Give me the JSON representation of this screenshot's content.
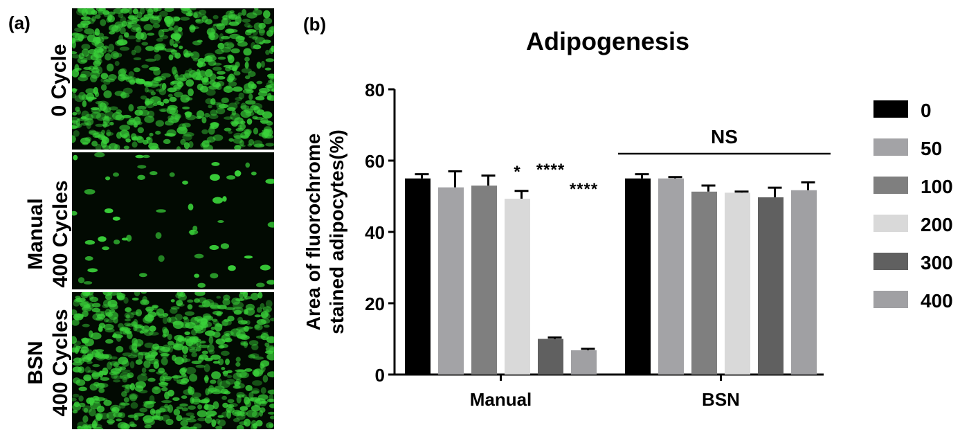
{
  "panel_a_label": "(a)",
  "panel_b_label": "(b)",
  "micrograph_rows": [
    {
      "line1": "0 Cycle",
      "line2": "",
      "density": "high"
    },
    {
      "line1": "Manual",
      "line2": "400 Cycles",
      "density": "sparse"
    },
    {
      "line1": "BSN",
      "line2": "400 Cycles",
      "density": "high"
    }
  ],
  "colors": {
    "fluorescence": "#3ad23a",
    "series": [
      "#000000",
      "#a3a3a6",
      "#7f7f7f",
      "#d9d9d9",
      "#606060",
      "#a0a0a3"
    ]
  },
  "chart_data": {
    "type": "bar",
    "title": "Adipogenesis",
    "ylabel_lines": [
      "Area of fluorochrome",
      "stained adipocytes(%)"
    ],
    "xlabel": "",
    "categories": [
      "Manual",
      "BSN"
    ],
    "ylim": [
      0,
      80
    ],
    "yticks": [
      0,
      20,
      40,
      60,
      80
    ],
    "grid": false,
    "legend_position": "right",
    "series": [
      {
        "name": "0",
        "values": [
          55.0,
          55.0
        ],
        "errors": [
          1.2,
          1.2
        ]
      },
      {
        "name": "50",
        "values": [
          52.5,
          55.0
        ],
        "errors": [
          4.5,
          0.4
        ]
      },
      {
        "name": "100",
        "values": [
          53.0,
          51.3
        ],
        "errors": [
          2.8,
          1.7
        ]
      },
      {
        "name": "200",
        "values": [
          49.3,
          51.0
        ],
        "errors": [
          2.2,
          0.3
        ]
      },
      {
        "name": "300",
        "values": [
          10.0,
          49.7
        ],
        "errors": [
          0.4,
          2.7
        ]
      },
      {
        "name": "400",
        "values": [
          6.8,
          51.7
        ],
        "errors": [
          0.4,
          2.2
        ]
      }
    ],
    "annotations": [
      {
        "text": "*",
        "category": 0,
        "series": 3
      },
      {
        "text": "****",
        "category": 0,
        "series": 4
      },
      {
        "text": "****",
        "category": 0,
        "series": 5
      }
    ],
    "group_bracket": {
      "text": "NS",
      "category": 1
    }
  }
}
